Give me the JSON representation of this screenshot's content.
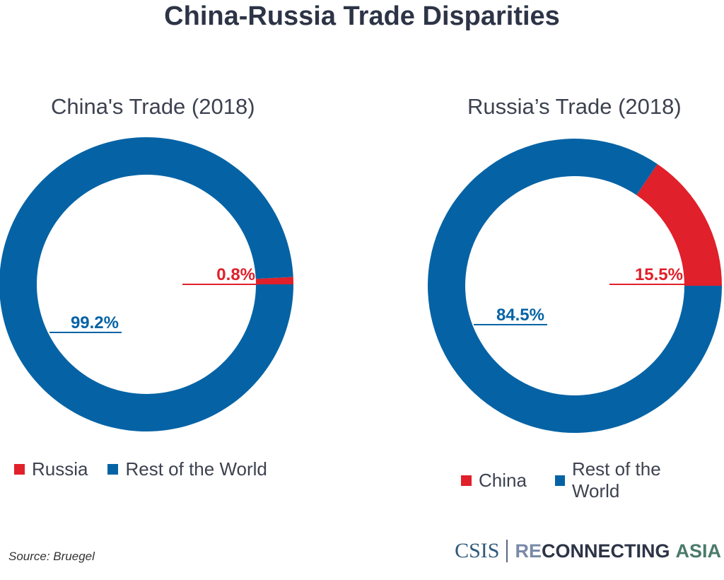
{
  "title": "China-Russia Trade Disparities",
  "colors": {
    "red": "#e0202a",
    "blue": "#0563a5"
  },
  "chart_data": [
    {
      "type": "pie",
      "title": "China's Trade (2018)",
      "categories": [
        "Russia",
        "Rest of the World"
      ],
      "values": [
        0.8,
        99.2
      ],
      "labels": [
        "0.8%",
        "99.2%"
      ],
      "colors": [
        "#e0202a",
        "#0563a5"
      ],
      "legend": [
        "Russia",
        "Rest of the World"
      ],
      "legend_position": "bottom"
    },
    {
      "type": "pie",
      "title": "Russia’s Trade (2018)",
      "categories": [
        "China",
        "Rest of the World"
      ],
      "values": [
        15.5,
        84.5
      ],
      "labels": [
        "15.5%",
        "84.5%"
      ],
      "colors": [
        "#e0202a",
        "#0563a5"
      ],
      "legend": [
        "China",
        "Rest of the World"
      ],
      "legend_position": "bottom"
    }
  ],
  "source": "Source: Bruegel",
  "logo": {
    "csis": "CSIS",
    "re": "RE",
    "connecting": "CONNECTING",
    "asia": "ASIA"
  }
}
